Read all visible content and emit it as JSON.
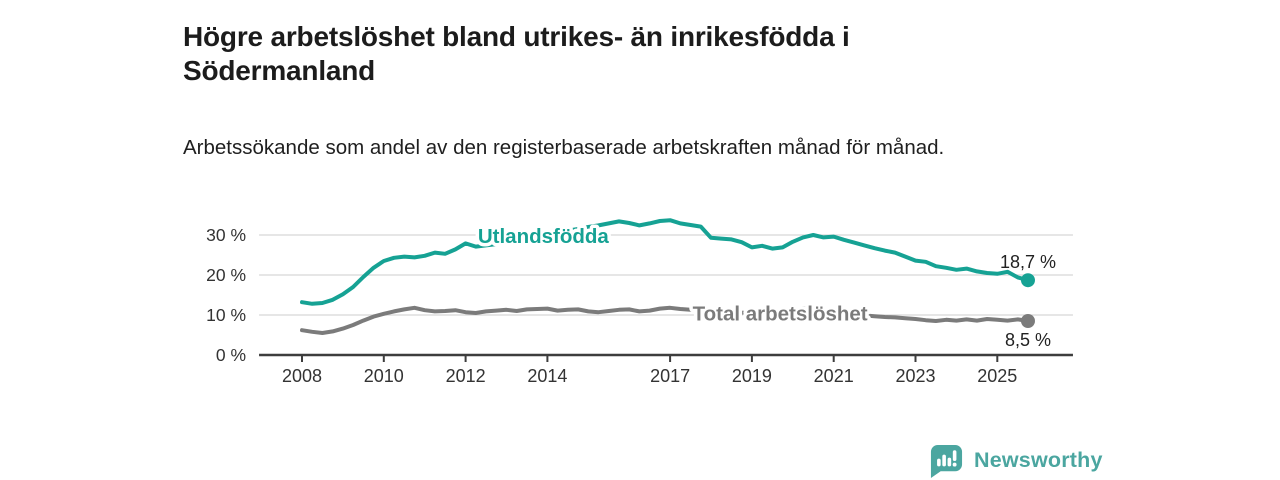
{
  "header": {
    "title": "Högre arbetslöshet bland utrikes- än inrikesfödda i Södermanland",
    "subtitle": "Arbetssökande som andel av den registerbaserade arbetskraften månad för månad."
  },
  "colors": {
    "foreign_born_line": "#16a294",
    "total_line": "#7b7b7b",
    "axis": "#3d3d3d",
    "gridline": "#d8d8d8",
    "tick_text": "#333333",
    "value_label_text": "#222222",
    "brand_teal": "#4ba6a0"
  },
  "chart_data": {
    "type": "line",
    "title": "Högre arbetslöshet bland utrikes- än inrikesfödda i Södermanland",
    "subtitle": "Arbetssökande som andel av den registerbaserade arbetskraften månad för månad.",
    "grid": "horizontal",
    "xlim": [
      2006.95,
      2026.85
    ],
    "ylim": [
      0,
      40
    ],
    "x_start": 2008,
    "x_step": 0.25,
    "x_ticks": [
      2008,
      2010,
      2012,
      2014,
      2017,
      2019,
      2021,
      2023,
      2025
    ],
    "y_ticks": [
      {
        "v": 0,
        "label": "0 %"
      },
      {
        "v": 10,
        "label": "10 %"
      },
      {
        "v": 20,
        "label": "20 %"
      },
      {
        "v": 30,
        "label": "30 %"
      }
    ],
    "series": [
      {
        "name": "Utlandsfödda",
        "color": "#16a294",
        "label_pos": {
          "x": 2012.3,
          "y": 29.7
        },
        "end_label": "18,7 %",
        "end_label_dy": -12,
        "values": [
          13.2,
          12.8,
          13.0,
          13.8,
          15.2,
          17.0,
          19.5,
          21.8,
          23.5,
          24.3,
          24.6,
          24.4,
          24.8,
          25.6,
          25.3,
          26.4,
          27.9,
          27.1,
          27.4,
          27.7,
          28.2,
          28.7,
          29.2,
          29.7,
          30.2,
          30.7,
          31.1,
          31.5,
          32.0,
          32.4,
          32.9,
          33.4,
          33.0,
          32.4,
          32.9,
          33.5,
          33.7,
          32.9,
          32.5,
          32.1,
          29.3,
          29.1,
          28.9,
          28.2,
          26.9,
          27.3,
          26.6,
          26.9,
          28.3,
          29.4,
          30.0,
          29.4,
          29.6,
          28.8,
          28.1,
          27.4,
          26.7,
          26.1,
          25.6,
          24.6,
          23.6,
          23.3,
          22.2,
          21.8,
          21.3,
          21.6,
          20.9,
          20.5,
          20.3,
          20.8,
          19.4,
          18.7
        ]
      },
      {
        "name": "Total arbetslöshet",
        "color": "#7b7b7b",
        "label_pos": {
          "x": 2017.55,
          "y": 10.4
        },
        "end_label": "8,5 %",
        "end_label_dy": 25,
        "values": [
          6.2,
          5.8,
          5.5,
          5.9,
          6.6,
          7.5,
          8.6,
          9.6,
          10.3,
          10.9,
          11.4,
          11.8,
          11.2,
          10.9,
          11.0,
          11.2,
          10.7,
          10.5,
          10.9,
          11.1,
          11.3,
          11.0,
          11.4,
          11.5,
          11.6,
          11.1,
          11.3,
          11.4,
          10.9,
          10.7,
          11.0,
          11.3,
          11.4,
          10.9,
          11.1,
          11.6,
          11.8,
          11.5,
          11.3,
          11.1,
          10.9,
          10.7,
          10.8,
          10.6,
          10.4,
          10.5,
          10.7,
          10.9,
          11.3,
          11.7,
          11.5,
          11.2,
          10.8,
          10.4,
          10.1,
          9.9,
          9.7,
          9.5,
          9.4,
          9.2,
          9.0,
          8.7,
          8.5,
          8.8,
          8.6,
          8.9,
          8.6,
          9.0,
          8.8,
          8.6,
          8.9,
          8.5
        ]
      }
    ]
  },
  "footer": {
    "brand": "Newsworthy",
    "brand_icon": "bar-chart-speech-bubble-icon"
  }
}
